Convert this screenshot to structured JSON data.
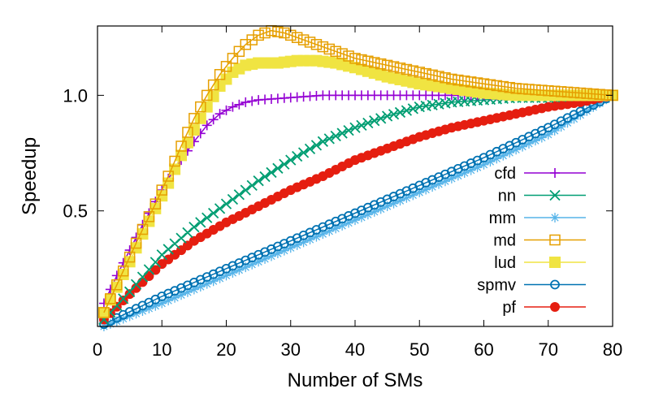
{
  "chart_data": {
    "type": "line",
    "title": "",
    "xlabel": "Number of SMs",
    "ylabel": "Speedup",
    "xlim": [
      0,
      80
    ],
    "ylim": [
      0,
      1.3
    ],
    "xticks": [
      0,
      10,
      20,
      30,
      40,
      50,
      60,
      70,
      80
    ],
    "yticks": [
      0.5,
      1.0
    ],
    "ytick_labels": [
      "0.5",
      "1.0"
    ],
    "grid": false,
    "legend_position": "bottom-right",
    "series": [
      {
        "name": "cfd",
        "color": "#9400d3",
        "marker": "plus",
        "points": [
          [
            1,
            0.1
          ],
          [
            3,
            0.22
          ],
          [
            5,
            0.33
          ],
          [
            7,
            0.44
          ],
          [
            9,
            0.54
          ],
          [
            11,
            0.64
          ],
          [
            13,
            0.72
          ],
          [
            15,
            0.8
          ],
          [
            17,
            0.87
          ],
          [
            19,
            0.92
          ],
          [
            21,
            0.95
          ],
          [
            23,
            0.97
          ],
          [
            25,
            0.98
          ],
          [
            30,
            0.99
          ],
          [
            35,
            1.0
          ],
          [
            40,
            1.0
          ],
          [
            45,
            1.0
          ],
          [
            50,
            1.0
          ],
          [
            55,
            1.0
          ],
          [
            60,
            1.0
          ],
          [
            65,
            1.0
          ],
          [
            70,
            1.0
          ],
          [
            75,
            1.0
          ],
          [
            80,
            1.0
          ]
        ]
      },
      {
        "name": "nn",
        "color": "#009e73",
        "marker": "cross",
        "points": [
          [
            1,
            0.03
          ],
          [
            5,
            0.15
          ],
          [
            10,
            0.31
          ],
          [
            15,
            0.43
          ],
          [
            20,
            0.53
          ],
          [
            25,
            0.63
          ],
          [
            30,
            0.72
          ],
          [
            35,
            0.8
          ],
          [
            40,
            0.86
          ],
          [
            45,
            0.91
          ],
          [
            50,
            0.95
          ],
          [
            55,
            0.97
          ],
          [
            60,
            0.98
          ],
          [
            65,
            0.99
          ],
          [
            70,
            0.99
          ],
          [
            75,
            1.0
          ],
          [
            80,
            1.0
          ]
        ]
      },
      {
        "name": "mm",
        "color": "#56b4e9",
        "marker": "asterisk",
        "points": [
          [
            1,
            0.0
          ],
          [
            10,
            0.1
          ],
          [
            20,
            0.22
          ],
          [
            30,
            0.34
          ],
          [
            40,
            0.46
          ],
          [
            50,
            0.58
          ],
          [
            60,
            0.7
          ],
          [
            70,
            0.83
          ],
          [
            80,
            1.0
          ]
        ]
      },
      {
        "name": "md",
        "color": "#e69f00",
        "marker": "square-open",
        "points": [
          [
            1,
            0.06
          ],
          [
            3,
            0.18
          ],
          [
            5,
            0.3
          ],
          [
            7,
            0.42
          ],
          [
            9,
            0.53
          ],
          [
            11,
            0.65
          ],
          [
            13,
            0.78
          ],
          [
            15,
            0.9
          ],
          [
            17,
            1.0
          ],
          [
            19,
            1.09
          ],
          [
            21,
            1.16
          ],
          [
            23,
            1.22
          ],
          [
            25,
            1.26
          ],
          [
            27,
            1.28
          ],
          [
            29,
            1.27
          ],
          [
            31,
            1.25
          ],
          [
            34,
            1.22
          ],
          [
            37,
            1.19
          ],
          [
            40,
            1.16
          ],
          [
            45,
            1.13
          ],
          [
            50,
            1.1
          ],
          [
            55,
            1.07
          ],
          [
            60,
            1.05
          ],
          [
            65,
            1.03
          ],
          [
            70,
            1.02
          ],
          [
            75,
            1.01
          ],
          [
            80,
            1.0
          ]
        ]
      },
      {
        "name": "lud",
        "color": "#f0e442",
        "marker": "square-filled",
        "points": [
          [
            1,
            0.06
          ],
          [
            3,
            0.17
          ],
          [
            5,
            0.28
          ],
          [
            7,
            0.4
          ],
          [
            9,
            0.51
          ],
          [
            11,
            0.62
          ],
          [
            13,
            0.74
          ],
          [
            15,
            0.85
          ],
          [
            17,
            0.95
          ],
          [
            19,
            1.04
          ],
          [
            21,
            1.1
          ],
          [
            23,
            1.13
          ],
          [
            25,
            1.14
          ],
          [
            28,
            1.14
          ],
          [
            31,
            1.15
          ],
          [
            34,
            1.15
          ],
          [
            37,
            1.14
          ],
          [
            40,
            1.12
          ],
          [
            45,
            1.08
          ],
          [
            50,
            1.05
          ],
          [
            55,
            1.03
          ],
          [
            60,
            1.01
          ],
          [
            65,
            1.0
          ],
          [
            70,
            1.0
          ],
          [
            75,
            1.0
          ],
          [
            80,
            1.0
          ]
        ]
      },
      {
        "name": "spmv",
        "color": "#0072b2",
        "marker": "circle-open",
        "points": [
          [
            1,
            0.01
          ],
          [
            10,
            0.13
          ],
          [
            20,
            0.25
          ],
          [
            30,
            0.37
          ],
          [
            40,
            0.49
          ],
          [
            50,
            0.61
          ],
          [
            60,
            0.73
          ],
          [
            70,
            0.86
          ],
          [
            80,
            1.0
          ]
        ]
      },
      {
        "name": "pf",
        "color": "#e51e10",
        "marker": "circle-filled",
        "points": [
          [
            1,
            0.03
          ],
          [
            5,
            0.14
          ],
          [
            10,
            0.27
          ],
          [
            15,
            0.37
          ],
          [
            20,
            0.45
          ],
          [
            25,
            0.52
          ],
          [
            30,
            0.59
          ],
          [
            35,
            0.65
          ],
          [
            40,
            0.72
          ],
          [
            45,
            0.77
          ],
          [
            50,
            0.82
          ],
          [
            55,
            0.86
          ],
          [
            60,
            0.89
          ],
          [
            65,
            0.92
          ],
          [
            70,
            0.95
          ],
          [
            75,
            0.97
          ],
          [
            80,
            1.0
          ]
        ]
      }
    ]
  }
}
